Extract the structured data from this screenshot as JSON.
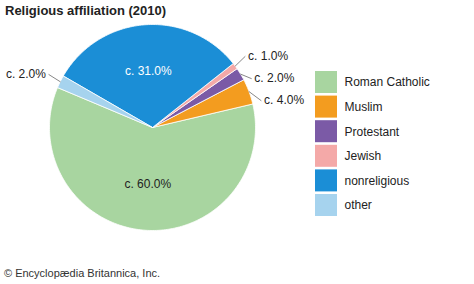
{
  "chart_data": {
    "type": "pie",
    "title": "Religious affiliation (2010)",
    "caption": "© Encyclopædia Britannica, Inc.",
    "categories": [
      "Roman Catholic",
      "Muslim",
      "Protestant",
      "Jewish",
      "nonreligious",
      "other"
    ],
    "values": [
      60,
      4,
      2,
      1,
      31,
      2
    ],
    "value_labels": [
      "c. 60.0%",
      "c. 4.0%",
      "c. 2.0%",
      "c. 1.0%",
      "c. 31.0%",
      "c. 2.0%"
    ],
    "colors": [
      "#a8d5a0",
      "#f39c1f",
      "#7b5aa6",
      "#f4a9a8",
      "#1b8ed6",
      "#a6d3ee"
    ],
    "data_labels": true,
    "legend": "right"
  }
}
